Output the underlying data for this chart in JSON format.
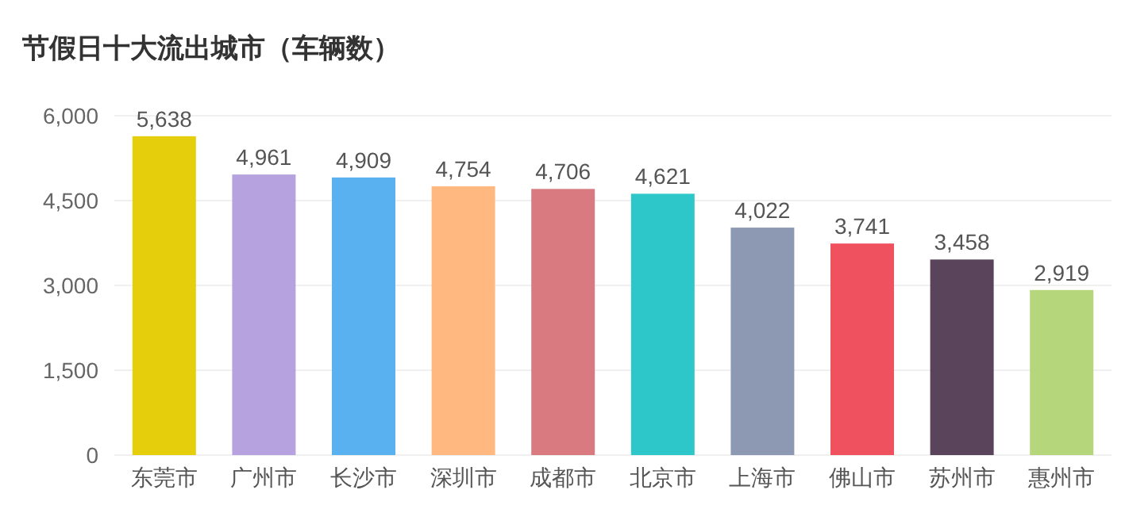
{
  "chart_data": {
    "type": "bar",
    "title": "节假日十大流出城市（车辆数）",
    "categories": [
      "东莞市",
      "广州市",
      "长沙市",
      "深圳市",
      "成都市",
      "北京市",
      "上海市",
      "佛山市",
      "苏州市",
      "惠州市"
    ],
    "values": [
      5638,
      4961,
      4909,
      4754,
      4706,
      4621,
      4022,
      3741,
      3458,
      2919
    ],
    "colors": [
      "#e5cf0d",
      "#b6a2de",
      "#5ab1ef",
      "#ffb980",
      "#d87a80",
      "#2ec7c9",
      "#8d98b3",
      "#f0515f",
      "#59445b",
      "#b5d67a"
    ],
    "ylim": [
      0,
      6000
    ],
    "yticks": [
      0,
      {
        "value": 1500,
        "label": "1,500"
      },
      {
        "value": 3000,
        "label": "3,000"
      },
      {
        "value": 4500,
        "label": "4,500"
      },
      {
        "value": 6000,
        "label": "6,000"
      }
    ],
    "value_labels": [
      "5,638",
      "4,961",
      "4,909",
      "4,754",
      "4,706",
      "4,621",
      "4,022",
      "3,741",
      "3,458",
      "2,919"
    ],
    "grid": "y"
  }
}
